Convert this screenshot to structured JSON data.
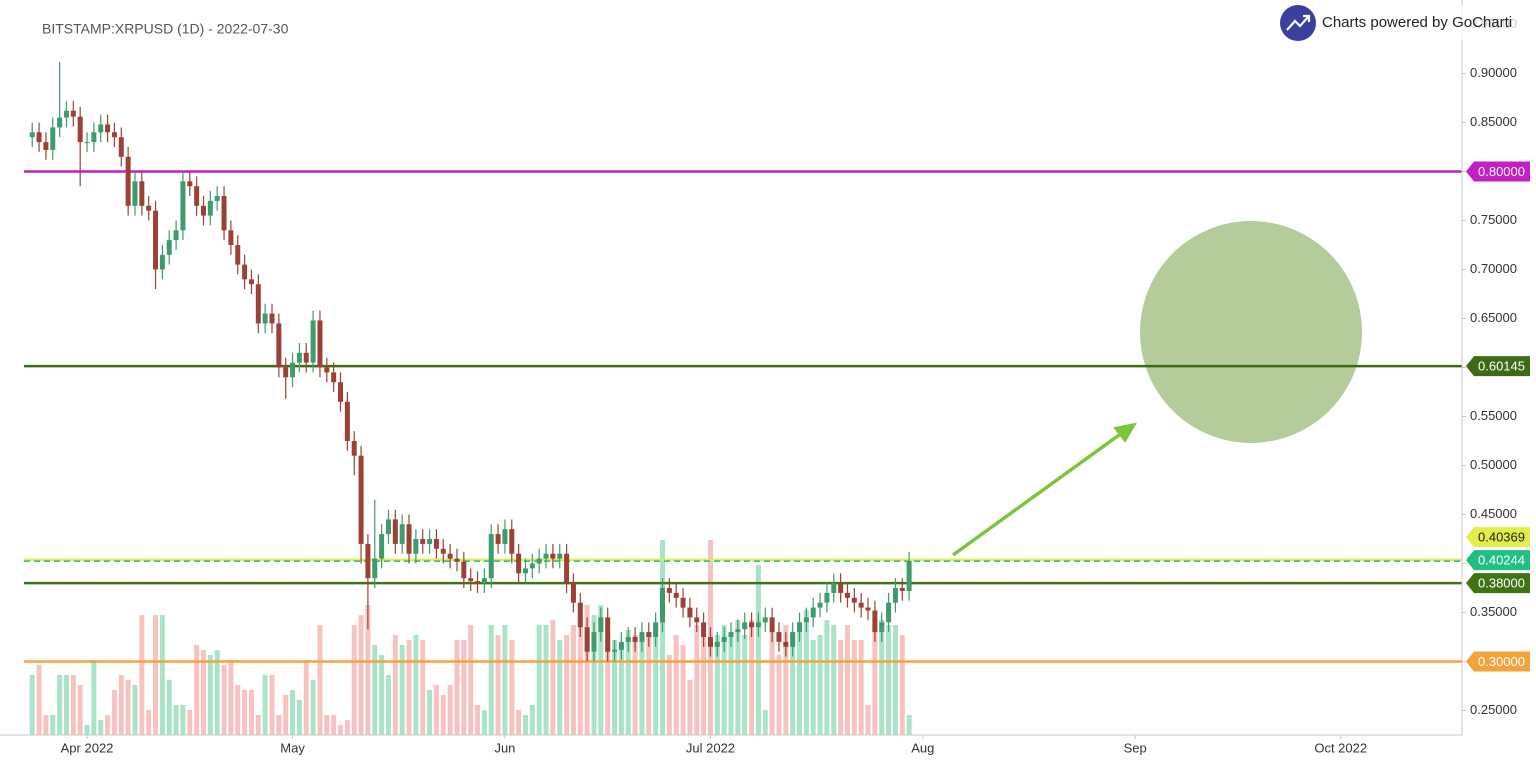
{
  "chart_data": {
    "type": "candlestick",
    "title": "BITSTAMP:XRPUSD (1D) - 2022-07-30",
    "brand": "Charts powered by GoCharti",
    "up_color": "#3f9b6c",
    "down_color": "#9c4136",
    "volume_up_color": "#a9e3c8",
    "volume_down_color": "#f7c3c0",
    "categories": [
      null,
      null,
      null,
      null,
      null,
      null,
      null,
      null,
      null,
      null,
      null,
      null,
      null,
      null,
      null,
      null,
      null,
      null,
      null,
      null,
      null,
      null,
      null,
      null,
      null,
      null,
      null,
      null,
      null,
      null,
      null,
      null,
      null,
      null,
      null,
      null,
      null,
      null,
      null,
      null,
      null,
      null,
      null,
      null,
      null,
      null,
      null,
      null,
      null,
      null,
      null,
      null,
      null,
      null,
      null,
      null,
      null,
      null,
      null,
      null,
      null,
      null,
      null,
      null,
      null,
      null,
      null,
      null,
      null,
      null,
      null,
      null,
      null,
      null,
      null,
      null,
      null,
      null,
      null,
      null,
      null,
      null,
      null,
      null,
      null,
      null,
      null,
      null,
      null,
      null,
      null,
      null,
      null,
      null,
      null,
      null,
      null,
      null,
      null,
      null,
      null,
      null,
      null,
      null,
      null,
      null,
      null,
      null,
      null,
      null,
      null,
      null,
      null,
      null,
      null,
      null,
      null,
      null,
      null,
      null,
      null,
      null,
      null,
      null,
      null,
      null,
      null,
      null,
      null
    ],
    "open": [
      0.835,
      0.84,
      0.83,
      0.822,
      0.845,
      0.855,
      0.862,
      0.856,
      0.83,
      0.83,
      0.84,
      0.848,
      0.84,
      0.835,
      0.815,
      0.765,
      0.79,
      0.765,
      0.76,
      0.7,
      0.715,
      0.73,
      0.74,
      0.79,
      0.785,
      0.765,
      0.755,
      0.77,
      0.775,
      0.74,
      0.725,
      0.705,
      0.69,
      0.685,
      0.645,
      0.655,
      0.645,
      0.6,
      0.59,
      0.605,
      0.615,
      0.605,
      0.648,
      0.6,
      0.595,
      0.585,
      0.565,
      0.525,
      0.51,
      0.42,
      0.385,
      0.405,
      0.43,
      0.445,
      0.42,
      0.44,
      0.41,
      0.425,
      0.42,
      0.425,
      0.415,
      0.41,
      0.405,
      0.402,
      0.385,
      0.382,
      0.38,
      0.385,
      0.43,
      0.42,
      0.435,
      0.41,
      0.39,
      0.395,
      0.4,
      0.405,
      0.41,
      0.405,
      0.41,
      0.38,
      0.36,
      0.335,
      0.31,
      0.33,
      0.345,
      0.31,
      0.312,
      0.32,
      0.325,
      0.32,
      0.33,
      0.325,
      0.34,
      0.375,
      0.37,
      0.365,
      0.355,
      0.345,
      0.34,
      0.325,
      0.315,
      0.32,
      0.325,
      0.33,
      0.333,
      0.34,
      0.335,
      0.34,
      0.345,
      0.33,
      0.32,
      0.315,
      0.33,
      0.34,
      0.345,
      0.355,
      0.36,
      0.37,
      0.38,
      0.37,
      0.365,
      0.36,
      0.355,
      0.352,
      0.33,
      0.34,
      0.36,
      0.375,
      0.372
    ],
    "high": [
      0.85,
      0.85,
      0.84,
      0.855,
      0.912,
      0.872,
      0.872,
      0.866,
      0.84,
      0.85,
      0.858,
      0.858,
      0.85,
      0.845,
      0.825,
      0.8,
      0.8,
      0.775,
      0.77,
      0.725,
      0.74,
      0.75,
      0.8,
      0.8,
      0.795,
      0.775,
      0.78,
      0.785,
      0.785,
      0.75,
      0.735,
      0.715,
      0.7,
      0.695,
      0.665,
      0.665,
      0.655,
      0.61,
      0.615,
      0.625,
      0.625,
      0.658,
      0.658,
      0.61,
      0.605,
      0.595,
      0.575,
      0.535,
      0.52,
      0.43,
      0.465,
      0.44,
      0.455,
      0.455,
      0.45,
      0.45,
      0.435,
      0.435,
      0.435,
      0.435,
      0.425,
      0.42,
      0.415,
      0.412,
      0.395,
      0.392,
      0.395,
      0.44,
      0.44,
      0.445,
      0.445,
      0.42,
      0.405,
      0.41,
      0.415,
      0.42,
      0.42,
      0.42,
      0.42,
      0.39,
      0.37,
      0.345,
      0.34,
      0.355,
      0.355,
      0.322,
      0.33,
      0.335,
      0.335,
      0.34,
      0.34,
      0.35,
      0.385,
      0.385,
      0.38,
      0.375,
      0.365,
      0.355,
      0.35,
      0.335,
      0.33,
      0.335,
      0.34,
      0.343,
      0.35,
      0.35,
      0.35,
      0.355,
      0.355,
      0.34,
      0.33,
      0.34,
      0.35,
      0.355,
      0.365,
      0.37,
      0.38,
      0.39,
      0.39,
      0.38,
      0.375,
      0.37,
      0.365,
      0.362,
      0.35,
      0.37,
      0.385,
      0.385,
      0.412
    ],
    "low": [
      0.825,
      0.82,
      0.812,
      0.812,
      0.835,
      0.845,
      0.846,
      0.785,
      0.82,
      0.82,
      0.83,
      0.83,
      0.825,
      0.805,
      0.755,
      0.755,
      0.755,
      0.75,
      0.68,
      0.69,
      0.705,
      0.72,
      0.73,
      0.775,
      0.755,
      0.745,
      0.745,
      0.76,
      0.73,
      0.715,
      0.695,
      0.68,
      0.675,
      0.635,
      0.635,
      0.635,
      0.59,
      0.568,
      0.58,
      0.595,
      0.595,
      0.595,
      0.59,
      0.585,
      0.575,
      0.555,
      0.515,
      0.49,
      0.4,
      0.333,
      0.375,
      0.395,
      0.42,
      0.41,
      0.41,
      0.4,
      0.4,
      0.41,
      0.41,
      0.405,
      0.4,
      0.395,
      0.392,
      0.375,
      0.372,
      0.37,
      0.37,
      0.375,
      0.41,
      0.41,
      0.4,
      0.38,
      0.38,
      0.385,
      0.39,
      0.395,
      0.395,
      0.395,
      0.37,
      0.35,
      0.325,
      0.3,
      0.3,
      0.32,
      0.3,
      0.3,
      0.302,
      0.31,
      0.31,
      0.31,
      0.315,
      0.315,
      0.33,
      0.36,
      0.355,
      0.345,
      0.335,
      0.33,
      0.315,
      0.305,
      0.305,
      0.31,
      0.315,
      0.32,
      0.323,
      0.325,
      0.325,
      0.33,
      0.32,
      0.31,
      0.305,
      0.305,
      0.32,
      0.33,
      0.335,
      0.345,
      0.35,
      0.36,
      0.36,
      0.355,
      0.35,
      0.345,
      0.342,
      0.32,
      0.32,
      0.33,
      0.35,
      0.362,
      0.362
    ],
    "close": [
      0.84,
      0.83,
      0.822,
      0.845,
      0.855,
      0.862,
      0.856,
      0.83,
      0.83,
      0.84,
      0.848,
      0.84,
      0.835,
      0.815,
      0.765,
      0.79,
      0.765,
      0.76,
      0.7,
      0.715,
      0.73,
      0.74,
      0.79,
      0.785,
      0.765,
      0.755,
      0.77,
      0.775,
      0.74,
      0.725,
      0.705,
      0.69,
      0.685,
      0.645,
      0.655,
      0.645,
      0.6,
      0.59,
      0.605,
      0.615,
      0.605,
      0.648,
      0.6,
      0.595,
      0.585,
      0.565,
      0.525,
      0.51,
      0.42,
      0.385,
      0.405,
      0.43,
      0.445,
      0.42,
      0.44,
      0.41,
      0.425,
      0.42,
      0.425,
      0.415,
      0.41,
      0.405,
      0.402,
      0.385,
      0.382,
      0.38,
      0.385,
      0.43,
      0.42,
      0.435,
      0.41,
      0.39,
      0.395,
      0.4,
      0.405,
      0.41,
      0.405,
      0.41,
      0.38,
      0.36,
      0.335,
      0.31,
      0.33,
      0.345,
      0.31,
      0.312,
      0.32,
      0.325,
      0.32,
      0.33,
      0.325,
      0.34,
      0.375,
      0.37,
      0.365,
      0.355,
      0.345,
      0.34,
      0.325,
      0.315,
      0.32,
      0.325,
      0.33,
      0.333,
      0.34,
      0.335,
      0.34,
      0.345,
      0.33,
      0.32,
      0.315,
      0.33,
      0.34,
      0.345,
      0.355,
      0.36,
      0.37,
      0.38,
      0.37,
      0.365,
      0.36,
      0.355,
      0.352,
      0.33,
      0.34,
      0.36,
      0.375,
      0.372,
      0.40244
    ],
    "volume": [
      60,
      70,
      20,
      20,
      60,
      60,
      60,
      50,
      10,
      75,
      15,
      20,
      45,
      60,
      55,
      50,
      120,
      25,
      120,
      120,
      55,
      30,
      30,
      25,
      90,
      85,
      80,
      85,
      70,
      75,
      50,
      45,
      45,
      20,
      60,
      60,
      20,
      40,
      45,
      35,
      75,
      55,
      110,
      20,
      20,
      10,
      15,
      110,
      120,
      130,
      90,
      80,
      60,
      100,
      90,
      95,
      100,
      95,
      45,
      50,
      40,
      50,
      95,
      95,
      110,
      30,
      25,
      110,
      100,
      110,
      95,
      25,
      20,
      30,
      110,
      110,
      115,
      95,
      100,
      110,
      120,
      130,
      120,
      130,
      100,
      95,
      90,
      105,
      100,
      95,
      100,
      110,
      195,
      80,
      100,
      90,
      55,
      110,
      105,
      195,
      100,
      110,
      100,
      115,
      100,
      115,
      170,
      25,
      110,
      80,
      110,
      100,
      105,
      125,
      95,
      100,
      115,
      110,
      95,
      110,
      95,
      95,
      30,
      110,
      115,
      110,
      110,
      100,
      20
    ],
    "xlim": [
      -1.2,
      208.7
    ],
    "xticks": [
      {
        "value": 8,
        "label": "Apr 2022"
      },
      {
        "value": 38,
        "label": "May"
      },
      {
        "value": 69,
        "label": "Jun"
      },
      {
        "value": 99,
        "label": "Jul 2022"
      },
      {
        "value": 130,
        "label": "Aug"
      },
      {
        "value": 161,
        "label": "Sep"
      },
      {
        "value": 191,
        "label": "Oct 2022"
      }
    ],
    "ylim": [
      0.225,
      0.975
    ],
    "yticks": [
      {
        "value": 0.25,
        "label": "0.25000"
      },
      {
        "value": 0.3,
        "label": "0.30000"
      },
      {
        "value": 0.35,
        "label": "0.35000"
      },
      {
        "value": 0.4,
        "label": "0.40000"
      },
      {
        "value": 0.45,
        "label": "0.45000"
      },
      {
        "value": 0.5,
        "label": "0.50000"
      },
      {
        "value": 0.55,
        "label": "0.55000"
      },
      {
        "value": 0.6,
        "label": "0.60000"
      },
      {
        "value": 0.65,
        "label": "0.65000"
      },
      {
        "value": 0.7,
        "label": "0.70000"
      },
      {
        "value": 0.75,
        "label": "0.75000"
      },
      {
        "value": 0.8,
        "label": "0.80000"
      },
      {
        "value": 0.85,
        "label": "0.85000"
      },
      {
        "value": 0.9,
        "label": "0.90000"
      },
      {
        "value": 0.95,
        "label": "0.95000"
      }
    ],
    "levels": [
      {
        "value": 0.8,
        "label": "0.80000",
        "color": "#c41fc4",
        "text_color": "#ffffff"
      },
      {
        "value": 0.60145,
        "label": "0.60145",
        "color": "#3d6a14",
        "text_color": "#ffffff"
      },
      {
        "value": 0.40369,
        "label": "0.40369",
        "color": "#e3ec4a",
        "text_color": "#222222"
      },
      {
        "value": 0.38,
        "label": "0.38000",
        "color": "#3f7414",
        "text_color": "#ffffff"
      },
      {
        "value": 0.3,
        "label": "0.30000",
        "color": "#f2a43a",
        "text_color": "#ffffff"
      }
    ],
    "last_price": {
      "value": 0.40244,
      "label": "0.40244",
      "color": "#1fbf86",
      "text_color": "#ffffff"
    }
  }
}
